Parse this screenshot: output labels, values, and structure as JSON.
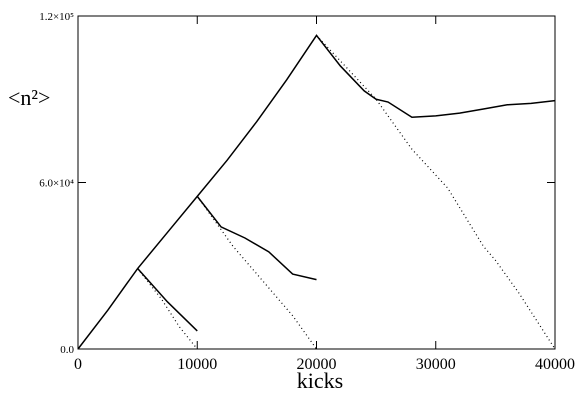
{
  "chart_data": {
    "type": "line",
    "xlabel": "kicks",
    "ylabel": "<n²>",
    "xlim": [
      0,
      40000
    ],
    "ylim": [
      0,
      120000
    ],
    "xticks": [
      0,
      10000,
      20000,
      30000,
      40000
    ],
    "yticks": [
      {
        "value": 0,
        "label": "0.0"
      },
      {
        "value": 60000,
        "label": "6.0×10⁴"
      },
      {
        "value": 120000,
        "label": "1.2×10⁵"
      }
    ],
    "series": [
      {
        "color": "#000000",
        "dash": "solid",
        "x": [
          0,
          2500,
          5000,
          7500,
          10000,
          12500,
          15000,
          17500,
          20000,
          22000,
          24000,
          25000,
          26000,
          28000,
          30000,
          32000,
          34000,
          36000,
          38000,
          40000
        ],
        "values": [
          0,
          14000,
          29000,
          42000,
          55000,
          68000,
          82000,
          97000,
          113000,
          102000,
          93000,
          90000,
          89000,
          83500,
          84000,
          85000,
          86500,
          88000,
          88500,
          89500
        ]
      },
      {
        "color": "#000000",
        "dash": "solid",
        "x": [
          5000,
          7500,
          10000
        ],
        "values": [
          29000,
          17000,
          6500
        ]
      },
      {
        "color": "#000000",
        "dash": "dotted",
        "x": [
          5000,
          7000,
          8500,
          10000
        ],
        "values": [
          29000,
          18000,
          8000,
          0
        ]
      },
      {
        "color": "#000000",
        "dash": "solid",
        "x": [
          10000,
          12000,
          14000,
          16000,
          18000,
          20000
        ],
        "values": [
          55000,
          44000,
          40000,
          35000,
          27000,
          25000
        ]
      },
      {
        "color": "#000000",
        "dash": "dotted",
        "x": [
          10000,
          13000,
          16000,
          18000,
          20000
        ],
        "values": [
          55000,
          37000,
          22000,
          12000,
          0
        ]
      },
      {
        "color": "#000000",
        "dash": "dotted",
        "x": [
          20000,
          25000,
          28000,
          31000,
          34000,
          35000,
          37000,
          40000
        ],
        "values": [
          113000,
          90000,
          72000,
          58000,
          37000,
          32000,
          20000,
          0
        ]
      }
    ]
  }
}
